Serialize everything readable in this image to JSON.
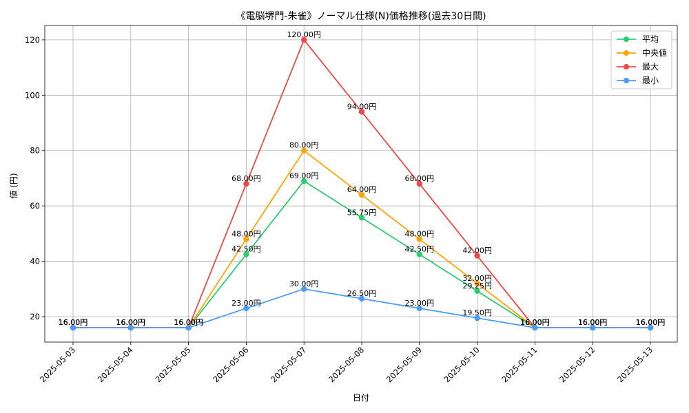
{
  "chart_data": {
    "type": "line",
    "title": "《電脳堺門-朱雀》ノーマル仕様(N)価格推移(過去30日間)",
    "xlabel": "日付",
    "ylabel": "値 (円)",
    "categories": [
      "2025-05-03",
      "2025-05-04",
      "2025-05-05",
      "2025-05-06",
      "2025-05-07",
      "2025-05-08",
      "2025-05-09",
      "2025-05-10",
      "2025-05-11",
      "2025-05-12",
      "2025-05-13"
    ],
    "ylim": [
      10.8,
      125.2
    ],
    "yticks": [
      20,
      40,
      60,
      80,
      100,
      120
    ],
    "grid": true,
    "legend_position": "top-right",
    "value_suffix": "円",
    "series": [
      {
        "name": "平均",
        "color": "#2ecc71",
        "values": [
          16,
          16,
          16,
          42.5,
          69,
          55.75,
          42.5,
          29.25,
          16,
          16,
          16
        ]
      },
      {
        "name": "中央値",
        "color": "#ffa500",
        "values": [
          16,
          16,
          16,
          48,
          80,
          64,
          48,
          32,
          16,
          16,
          16
        ]
      },
      {
        "name": "最大",
        "color": "#f04848",
        "values": [
          16,
          16,
          16,
          68,
          120,
          94,
          68,
          42,
          16,
          16,
          16
        ]
      },
      {
        "name": "最小",
        "color": "#4b9cf5",
        "values": [
          16,
          16,
          16,
          23,
          30,
          26.5,
          23,
          19.5,
          16,
          16,
          16
        ]
      }
    ]
  }
}
